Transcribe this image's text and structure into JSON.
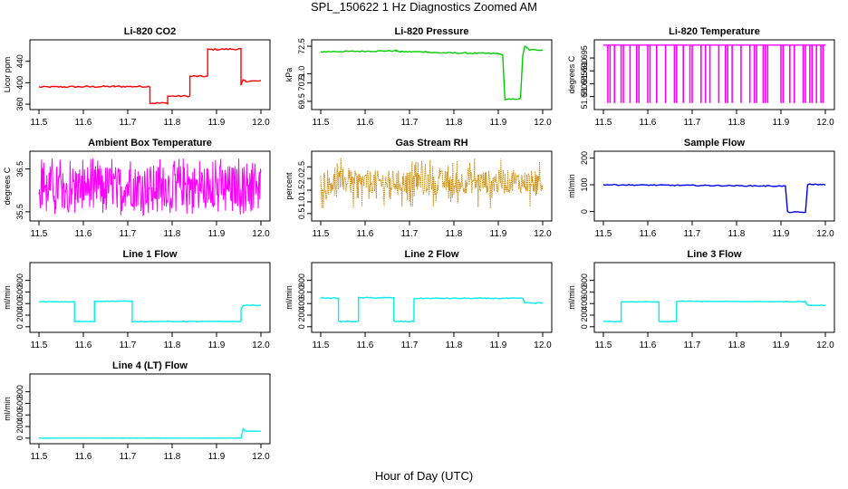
{
  "figure": {
    "title": "SPL_150622  1 Hz Diagnostics Zoomed AM",
    "xlabel": "Hour of Day (UTC)"
  },
  "chart_data": [
    {
      "type": "line",
      "title": "Li-820 CO2",
      "xlabel": "",
      "ylabel": "Licor ppm",
      "xlim": [
        11.5,
        12.0
      ],
      "ylim": [
        355,
        475
      ],
      "xticks": [
        "11.5",
        "11.6",
        "11.7",
        "11.8",
        "11.9",
        "12.0"
      ],
      "yticks": [
        {
          "v": 360,
          "label": "360"
        },
        {
          "v": 400,
          "label": "400"
        },
        {
          "v": 440,
          "label": "440"
        }
      ],
      "color": "#ff0000",
      "noise": 1.5,
      "jitter": 0,
      "x": [
        11.5,
        11.67,
        11.75,
        11.75,
        11.79,
        11.79,
        11.84,
        11.84,
        11.88,
        11.88,
        11.955,
        11.955,
        11.96,
        11.965,
        12.0
      ],
      "y": [
        392,
        393,
        393,
        362,
        362,
        375,
        375,
        412,
        412,
        462,
        463,
        395,
        405,
        403,
        403
      ]
    },
    {
      "type": "line",
      "title": "Li-820 Pressure",
      "xlabel": "",
      "ylabel": "kPa",
      "xlim": [
        11.5,
        12.0
      ],
      "ylim": [
        69.2,
        72.7
      ],
      "xticks": [
        "11.5",
        "11.6",
        "11.7",
        "11.8",
        "11.9",
        "12.0"
      ],
      "yticks": [
        {
          "v": 69.5,
          "label": "69.5"
        },
        {
          "v": 70.5,
          "label": "70.5"
        },
        {
          "v": 71.0,
          "label": "71.0"
        },
        {
          "v": 72.5,
          "label": "72.5"
        }
      ],
      "color": "#00cc00",
      "noise": 0.03,
      "jitter": 0,
      "x": [
        11.5,
        11.67,
        11.68,
        11.74,
        11.75,
        11.9,
        11.91,
        11.915,
        11.92,
        11.95,
        11.955,
        11.96,
        11.97,
        12.0
      ],
      "y": [
        72.2,
        72.25,
        72.2,
        72.2,
        72.15,
        72.1,
        72.0,
        69.6,
        69.6,
        69.65,
        72.0,
        72.5,
        72.3,
        72.3
      ]
    },
    {
      "type": "line",
      "title": "Li-820 Temperature",
      "xlabel": "",
      "ylabel": "degrees C",
      "xlim": [
        11.5,
        12.0
      ],
      "ylim": [
        51.676,
        51.701
      ],
      "xticks": [
        "11.5",
        "11.6",
        "11.7",
        "11.8",
        "11.9",
        "12.0"
      ],
      "yticks": [
        {
          "v": 51.68,
          "label": "51.680"
        },
        {
          "v": 51.685,
          "label": "51.685"
        },
        {
          "v": 51.69,
          "label": "51.690"
        },
        {
          "v": 51.695,
          "label": "51.695"
        }
      ],
      "color": "#ff00ff",
      "noise": 0,
      "jitter": 0,
      "x": [
        11.5,
        12.0
      ],
      "y": [
        51.7,
        51.7
      ],
      "spikes": {
        "top": 51.7,
        "bottom": 51.6775,
        "at": [
          11.51,
          11.515,
          11.525,
          11.54,
          11.545,
          11.56,
          11.575,
          11.58,
          11.6,
          11.605,
          11.62,
          11.64,
          11.66,
          11.665,
          11.68,
          11.695,
          11.7,
          11.72,
          11.73,
          11.74,
          11.76,
          11.775,
          11.78,
          11.79,
          11.81,
          11.83,
          11.84,
          11.845,
          11.86,
          11.865,
          11.87,
          11.9,
          11.905,
          11.92,
          11.93,
          11.95,
          11.955,
          11.965,
          11.97,
          11.98,
          11.99,
          11.995
        ]
      }
    },
    {
      "type": "line",
      "title": "Ambient Box Temperature",
      "xlabel": "",
      "ylabel": "degrees C",
      "xlim": [
        11.5,
        12.0
      ],
      "ylim": [
        35.35,
        36.85
      ],
      "xticks": [
        "11.5",
        "11.6",
        "11.7",
        "11.8",
        "11.9",
        "12.0"
      ],
      "yticks": [
        {
          "v": 35.5,
          "label": "35.5"
        },
        {
          "v": 36.5,
          "label": "36.5"
        }
      ],
      "color": "#ff00ff",
      "noise": 0,
      "jitter": 0,
      "x": [
        11.5,
        12.0
      ],
      "y": [
        36.05,
        36.05
      ],
      "band": {
        "lo": 35.6,
        "hi": 36.6,
        "lo_ext": 35.42,
        "hi_ext": 36.75
      }
    },
    {
      "type": "scatter",
      "title": "Gas Stream RH",
      "xlabel": "",
      "ylabel": "percent",
      "xlim": [
        11.5,
        12.0
      ],
      "ylim": [
        0.3,
        3.05
      ],
      "xticks": [
        "11.5",
        "11.6",
        "11.7",
        "11.8",
        "11.9",
        "12.0"
      ],
      "yticks": [
        {
          "v": 0.5,
          "label": "0.5"
        },
        {
          "v": 1.0,
          "label": "1.0"
        },
        {
          "v": 1.5,
          "label": "1.5"
        },
        {
          "v": 2.0,
          "label": "2.0"
        },
        {
          "v": 2.5,
          "label": "2.5"
        }
      ],
      "color": "#cc8800",
      "noise": 0,
      "jitter": 0,
      "x": [
        11.5,
        12.0
      ],
      "y": [
        1.85,
        1.85
      ],
      "band": {
        "lo": 1.35,
        "hi": 2.35,
        "lo_ext": 0.7,
        "hi_ext": 2.9
      }
    },
    {
      "type": "line",
      "title": "Sample Flow",
      "xlabel": "",
      "ylabel": "ml/min",
      "xlim": [
        11.5,
        12.0
      ],
      "ylim": [
        -25,
        215
      ],
      "xticks": [
        "11.5",
        "11.6",
        "11.7",
        "11.8",
        "11.9",
        "12.0"
      ],
      "yticks": [
        {
          "v": 0,
          "label": "0"
        },
        {
          "v": 100,
          "label": "100"
        },
        {
          "v": 200,
          "label": "200"
        }
      ],
      "color": "#0000ee",
      "noise": 1.8,
      "jitter": 0,
      "x": [
        11.5,
        11.75,
        11.91,
        11.915,
        11.955,
        11.96,
        11.965,
        12.0
      ],
      "y": [
        100,
        97,
        95,
        -2,
        -3,
        98,
        102,
        100
      ]
    },
    {
      "type": "line",
      "title": "Line 1 Flow",
      "xlabel": "",
      "ylabel": "ml/min",
      "xlim": [
        11.5,
        12.0
      ],
      "ylim": [
        -50,
        1060
      ],
      "xticks": [
        "11.5",
        "11.6",
        "11.7",
        "11.8",
        "11.9",
        "12.0"
      ],
      "yticks": [
        {
          "v": 0,
          "label": "0"
        },
        {
          "v": 200,
          "label": "200"
        },
        {
          "v": 400,
          "label": "400"
        },
        {
          "v": 600,
          "label": "600"
        },
        {
          "v": 800,
          "label": "800"
        }
      ],
      "color": "#00eeee",
      "noise": 5,
      "jitter": 0,
      "x": [
        11.5,
        11.58,
        11.58,
        11.625,
        11.625,
        11.71,
        11.71,
        11.955,
        11.955,
        11.96,
        12.0
      ],
      "y": [
        430,
        430,
        90,
        90,
        440,
        440,
        90,
        90,
        300,
        370,
        370
      ]
    },
    {
      "type": "line",
      "title": "Line 2 Flow",
      "xlabel": "",
      "ylabel": "ml/min",
      "xlim": [
        11.5,
        12.0
      ],
      "ylim": [
        -50,
        1060
      ],
      "xticks": [
        "11.5",
        "11.6",
        "11.7",
        "11.8",
        "11.9",
        "12.0"
      ],
      "yticks": [
        {
          "v": 0,
          "label": "0"
        },
        {
          "v": 200,
          "label": "200"
        },
        {
          "v": 400,
          "label": "400"
        },
        {
          "v": 600,
          "label": "600"
        },
        {
          "v": 800,
          "label": "800"
        }
      ],
      "color": "#00eeee",
      "noise": 8,
      "jitter": 0,
      "x": [
        11.5,
        11.54,
        11.54,
        11.585,
        11.585,
        11.665,
        11.665,
        11.71,
        11.71,
        11.955,
        11.96,
        12.0
      ],
      "y": [
        500,
        490,
        90,
        90,
        500,
        500,
        90,
        90,
        490,
        490,
        410,
        410
      ]
    },
    {
      "type": "line",
      "title": "Line 3 Flow",
      "xlabel": "",
      "ylabel": "ml/min",
      "xlim": [
        11.5,
        12.0
      ],
      "ylim": [
        -50,
        1060
      ],
      "xticks": [
        "11.5",
        "11.6",
        "11.7",
        "11.8",
        "11.9",
        "12.0"
      ],
      "yticks": [
        {
          "v": 0,
          "label": "0"
        },
        {
          "v": 200,
          "label": "200"
        },
        {
          "v": 400,
          "label": "400"
        },
        {
          "v": 600,
          "label": "600"
        },
        {
          "v": 800,
          "label": "800"
        }
      ],
      "color": "#00eeee",
      "noise": 4,
      "jitter": 0,
      "x": [
        11.5,
        11.54,
        11.54,
        11.625,
        11.625,
        11.665,
        11.665,
        11.955,
        11.96,
        12.0
      ],
      "y": [
        90,
        90,
        430,
        430,
        90,
        90,
        440,
        430,
        370,
        370
      ]
    },
    {
      "type": "line",
      "title": "Line 4 (LT) Flow",
      "xlabel": "",
      "ylabel": "ml/min",
      "xlim": [
        11.5,
        12.0
      ],
      "ylim": [
        -50,
        1060
      ],
      "xticks": [
        "11.5",
        "11.6",
        "11.7",
        "11.8",
        "11.9",
        "12.0"
      ],
      "yticks": [
        {
          "v": 0,
          "label": "0"
        },
        {
          "v": 200,
          "label": "200"
        },
        {
          "v": 400,
          "label": "400"
        },
        {
          "v": 600,
          "label": "600"
        },
        {
          "v": 800,
          "label": "800"
        }
      ],
      "color": "#00eeee",
      "noise": 1.5,
      "jitter": 0,
      "x": [
        11.5,
        11.955,
        11.96,
        11.965,
        12.0
      ],
      "y": [
        0,
        0,
        160,
        120,
        120
      ]
    }
  ]
}
